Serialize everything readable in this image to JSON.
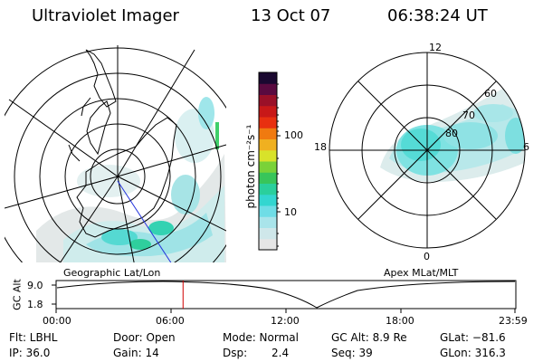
{
  "header": {
    "instrument": "Ultraviolet Imager",
    "date": "13 Oct 07",
    "time": "06:38:24 UT"
  },
  "left_panel": {
    "label": "Geographic Lat/Lon"
  },
  "right_panel": {
    "label": "Apex MLat/MLT",
    "mlt_labels": [
      "12",
      "18",
      "6",
      "0"
    ],
    "mlat_labels": [
      "60",
      "70",
      "80"
    ]
  },
  "colorbar": {
    "unit_label": "photon cm⁻²s⁻¹",
    "ticks": [
      "100",
      "10"
    ],
    "colors": [
      "#e6e6e6",
      "#cfe7ea",
      "#a9e4ea",
      "#6fdde6",
      "#33d6d0",
      "#2acf9c",
      "#38c55a",
      "#7ad238",
      "#d8e22a",
      "#f0b020",
      "#f07a10",
      "#e83010",
      "#c81818",
      "#9a1028",
      "#5a0a40",
      "#1a0830"
    ]
  },
  "timeline": {
    "y_label": "GC Alt",
    "y_ticks": [
      "9.0",
      "1.8"
    ],
    "x_ticks": [
      "00:00",
      "06:00",
      "12:00",
      "18:00",
      "23:59"
    ],
    "marker_hour": 6.64,
    "marker_color": "#d00000"
  },
  "info": {
    "filter": "Flt: LBHL",
    "ip": "IP: 36.0",
    "door": "Door: Open",
    "gain": "Gain: 14",
    "mode": "Mode: Normal",
    "dsp_label": "Dsp:",
    "dsp_value": "2.4",
    "gc_alt": "GC Alt: 8.9 Re",
    "seq": "Seq: 39",
    "glat": "GLat: −81.6",
    "glon": "GLon: 316.3"
  }
}
